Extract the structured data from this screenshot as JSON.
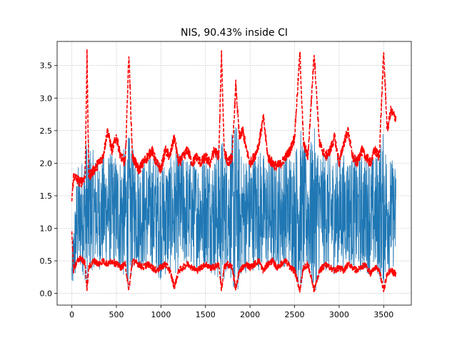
{
  "chart_data": {
    "type": "line",
    "title": "NIS, 90.43% inside CI",
    "xlabel": "",
    "ylabel": "",
    "xlim": [
      -165,
      3810
    ],
    "ylim": [
      -0.18,
      3.87
    ],
    "grid": true,
    "x_ticks": [
      0,
      500,
      1000,
      1500,
      2000,
      2500,
      3000,
      3500
    ],
    "y_ticks": [
      0.0,
      0.5,
      1.0,
      1.5,
      2.0,
      2.5,
      3.0,
      3.5
    ],
    "x_tick_labels": [
      "0",
      "500",
      "1000",
      "1500",
      "2000",
      "2500",
      "3000",
      "3500"
    ],
    "y_tick_labels": [
      "0.0",
      "0.5",
      "1.0",
      "1.5",
      "2.0",
      "2.5",
      "3.0",
      "3.5"
    ],
    "n_points": 3640,
    "series": [
      {
        "role": "nis-values",
        "style": "solid",
        "color": "#1f77b4",
        "x": [
          0,
          60,
          120,
          170,
          240,
          300,
          400,
          500,
          560,
          640,
          700,
          800,
          900,
          1000,
          1100,
          1180,
          1250,
          1350,
          1450,
          1520,
          1600,
          1680,
          1760,
          1840,
          1900,
          2000,
          2100,
          2200,
          2300,
          2400,
          2500,
          2560,
          2640,
          2720,
          2800,
          2900,
          3000,
          3100,
          3200,
          3300,
          3400,
          3500,
          3560,
          3630
        ],
        "center": [
          0.3,
          1.1,
          1.2,
          1.25,
          1.3,
          1.2,
          1.3,
          1.25,
          1.2,
          1.25,
          1.3,
          1.2,
          1.25,
          1.15,
          1.2,
          1.25,
          1.3,
          1.2,
          1.25,
          1.3,
          1.2,
          1.25,
          1.3,
          1.25,
          1.2,
          1.25,
          1.3,
          1.2,
          1.25,
          1.3,
          1.25,
          1.3,
          1.2,
          1.25,
          1.3,
          1.2,
          1.25,
          1.3,
          1.2,
          1.25,
          1.2,
          1.3,
          1.25,
          1.2
        ],
        "spread": [
          0.3,
          0.85,
          0.9,
          1.2,
          0.9,
          0.85,
          0.9,
          0.9,
          0.95,
          1.2,
          0.9,
          0.85,
          0.9,
          0.95,
          0.9,
          0.95,
          0.9,
          0.85,
          0.9,
          0.9,
          0.95,
          1.2,
          0.9,
          1.5,
          0.95,
          0.9,
          0.95,
          0.9,
          0.85,
          0.9,
          0.95,
          1.3,
          0.9,
          1.3,
          0.9,
          0.95,
          0.9,
          0.85,
          0.9,
          0.95,
          0.9,
          1.2,
          0.9,
          0.8
        ]
      },
      {
        "role": "ci-upper",
        "style": "dashed",
        "color": "#ff0000",
        "x": [
          0,
          20,
          60,
          100,
          150,
          170,
          190,
          250,
          300,
          350,
          400,
          450,
          500,
          550,
          600,
          640,
          680,
          750,
          800,
          850,
          900,
          950,
          1000,
          1050,
          1100,
          1150,
          1200,
          1250,
          1300,
          1350,
          1400,
          1450,
          1500,
          1550,
          1600,
          1650,
          1680,
          1710,
          1750,
          1800,
          1840,
          1880,
          1920,
          1960,
          2000,
          2050,
          2100,
          2150,
          2200,
          2250,
          2300,
          2350,
          2400,
          2450,
          2500,
          2560,
          2600,
          2650,
          2720,
          2780,
          2850,
          2900,
          2950,
          3000,
          3050,
          3100,
          3150,
          3200,
          3250,
          3300,
          3350,
          3400,
          3450,
          3500,
          3540,
          3580,
          3630
        ],
        "y": [
          1.45,
          1.8,
          1.75,
          1.7,
          1.8,
          3.7,
          1.8,
          1.9,
          2.0,
          2.1,
          2.5,
          2.2,
          2.4,
          2.1,
          2.0,
          3.7,
          2.1,
          1.9,
          2.0,
          2.1,
          2.2,
          2.0,
          1.9,
          2.2,
          2.1,
          2.4,
          2.0,
          2.1,
          2.2,
          2.0,
          2.1,
          2.0,
          2.1,
          2.0,
          2.2,
          2.1,
          3.7,
          2.2,
          2.0,
          2.1,
          3.2,
          2.4,
          2.5,
          2.2,
          2.0,
          2.1,
          2.3,
          2.7,
          2.1,
          2.0,
          1.95,
          2.0,
          2.1,
          2.2,
          2.4,
          3.7,
          2.3,
          2.1,
          3.7,
          2.3,
          2.1,
          2.2,
          2.4,
          2.0,
          2.3,
          2.5,
          2.1,
          2.0,
          2.2,
          2.1,
          2.0,
          2.2,
          2.1,
          3.7,
          2.5,
          2.8,
          2.7
        ]
      },
      {
        "role": "ci-lower",
        "style": "dashed",
        "color": "#ff0000",
        "x": [
          0,
          20,
          60,
          100,
          150,
          170,
          190,
          250,
          300,
          350,
          400,
          450,
          500,
          550,
          600,
          640,
          680,
          750,
          800,
          850,
          900,
          950,
          1000,
          1050,
          1100,
          1150,
          1200,
          1250,
          1300,
          1350,
          1400,
          1450,
          1500,
          1550,
          1600,
          1650,
          1680,
          1710,
          1750,
          1800,
          1840,
          1880,
          1920,
          1960,
          2000,
          2050,
          2100,
          2150,
          2200,
          2250,
          2300,
          2350,
          2400,
          2450,
          2500,
          2560,
          2600,
          2650,
          2720,
          2780,
          2850,
          2900,
          2950,
          3000,
          3050,
          3100,
          3150,
          3200,
          3250,
          3300,
          3350,
          3400,
          3450,
          3500,
          3540,
          3580,
          3630
        ],
        "y": [
          0.95,
          0.35,
          0.5,
          0.55,
          0.45,
          0.05,
          0.4,
          0.5,
          0.45,
          0.5,
          0.45,
          0.5,
          0.45,
          0.4,
          0.45,
          0.05,
          0.5,
          0.45,
          0.4,
          0.45,
          0.4,
          0.35,
          0.4,
          0.45,
          0.35,
          0.1,
          0.35,
          0.4,
          0.45,
          0.4,
          0.35,
          0.4,
          0.45,
          0.4,
          0.4,
          0.45,
          0.05,
          0.4,
          0.45,
          0.4,
          0.05,
          0.35,
          0.4,
          0.45,
          0.4,
          0.45,
          0.5,
          0.35,
          0.45,
          0.5,
          0.4,
          0.45,
          0.5,
          0.4,
          0.35,
          0.05,
          0.4,
          0.45,
          0.05,
          0.35,
          0.45,
          0.4,
          0.35,
          0.4,
          0.35,
          0.45,
          0.4,
          0.35,
          0.4,
          0.45,
          0.3,
          0.4,
          0.35,
          0.05,
          0.3,
          0.35,
          0.3
        ]
      }
    ]
  }
}
